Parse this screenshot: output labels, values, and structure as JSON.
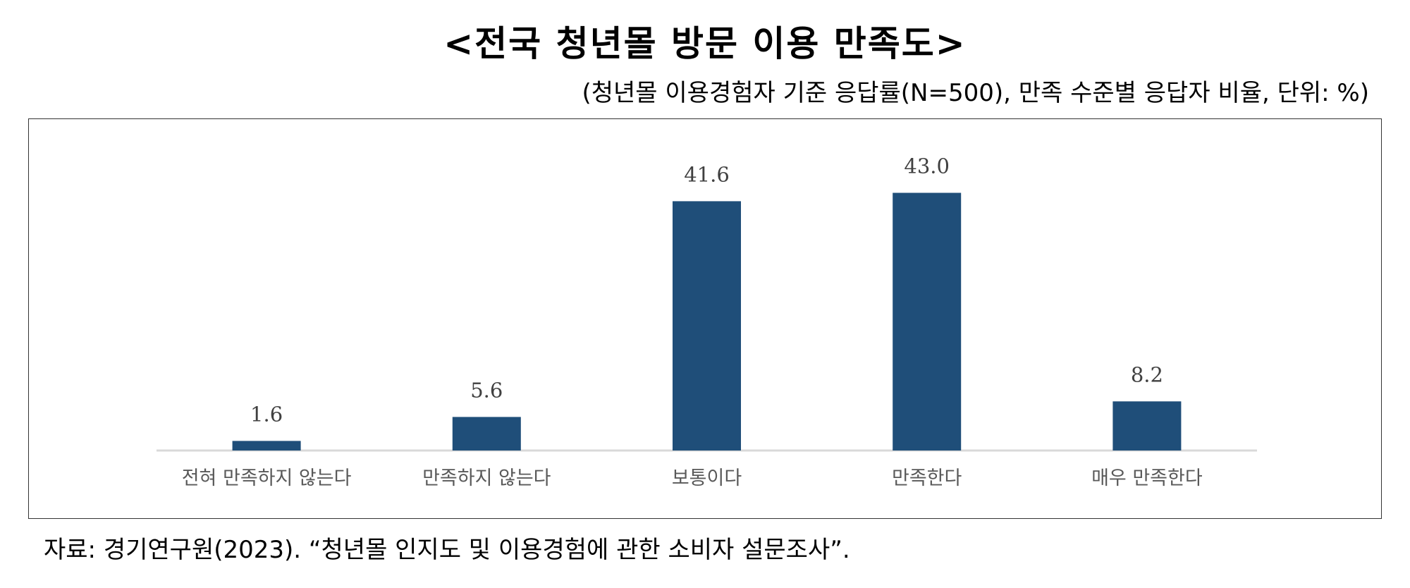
{
  "title": "<전국 청년몰 방문 이용 만족도>",
  "subtitle": "(청년몰 이용경험자 기준 응답률(N=500), 만족 수준별 응답자 비율, 단위: %)",
  "source": "자료: 경기연구원(2023). “청년몰 인지도 및 이용경험에 관한 소비자 설문조사”.",
  "colors": {
    "bar": "#1f4e79",
    "axis": "#d9d9d9",
    "frame": "#333333"
  },
  "chart_data": {
    "type": "bar",
    "categories": [
      "전혀 만족하지 않는다",
      "만족하지 않는다",
      "보통이다",
      "만족한다",
      "매우 만족한다"
    ],
    "values": [
      1.6,
      5.6,
      41.6,
      43.0,
      8.2
    ],
    "value_labels": [
      "1.6",
      "5.6",
      "41.6",
      "43.0",
      "8.2"
    ],
    "ylim": [
      0,
      50
    ],
    "grid": false,
    "legend": "none"
  }
}
